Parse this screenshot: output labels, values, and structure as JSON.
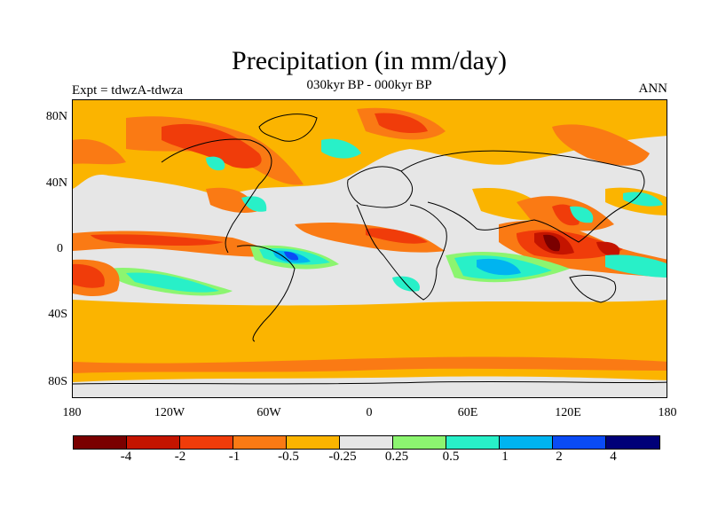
{
  "title": "Precipitation (in mm/day)",
  "subtitle": "030kyr BP - 000kyr BP",
  "experiment_label": "Expt = tdwzA-tdwza",
  "season_label": "ANN",
  "lat_labels": [
    "80N",
    "40N",
    "0",
    "40S",
    "80S"
  ],
  "lon_labels": [
    "180",
    "120W",
    "60W",
    "0",
    "60E",
    "120E",
    "180"
  ],
  "colorbar": {
    "colors": [
      "#7a0000",
      "#c41400",
      "#f03c0a",
      "#fa7a14",
      "#fbb400",
      "#e6e6e6",
      "#8cf570",
      "#28f0c8",
      "#00b4f0",
      "#0a4bf5",
      "#000078"
    ],
    "labels": [
      "-4",
      "-2",
      "-1",
      "-0.5",
      "-0.25",
      "0.25",
      "0.5",
      "1",
      "2",
      "4"
    ]
  }
}
